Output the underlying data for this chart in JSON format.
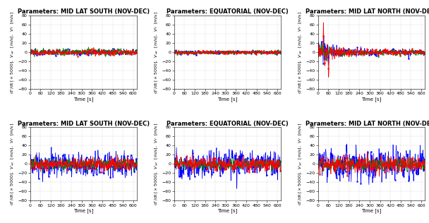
{
  "titles": [
    [
      "Parameters: MID LAT SOUTH (NOV-DEC)",
      "Parameters: EQUATORIAL (NOV-DEC)",
      "Parameters: MID LAT NORTH (NOV-DEC)"
    ],
    [
      "Parameters: MID LAT SOUTH (NOV-DEC)",
      "Parameters: EQUATORIAL (NOV-DEC)",
      "Parameters: MID LAT NORTH (NOV-DEC)"
    ]
  ],
  "xlabel": "Time [s]",
  "xlim": [
    0,
    620
  ],
  "xticks": [
    0,
    60,
    120,
    180,
    240,
    300,
    360,
    420,
    480,
    540,
    600
  ],
  "ylim": [
    -80,
    80
  ],
  "yticks": [
    -80,
    -60,
    -40,
    -20,
    0,
    20,
    40,
    60,
    80
  ],
  "colors": [
    "#0000FF",
    "#008000",
    "#FF0000"
  ],
  "bg_color": "#ffffff",
  "title_fontsize": 6.0,
  "label_fontsize": 5.0,
  "tick_fontsize": 4.5,
  "linewidth": 0.5,
  "marker_size": 1.5,
  "marker_every": 8
}
